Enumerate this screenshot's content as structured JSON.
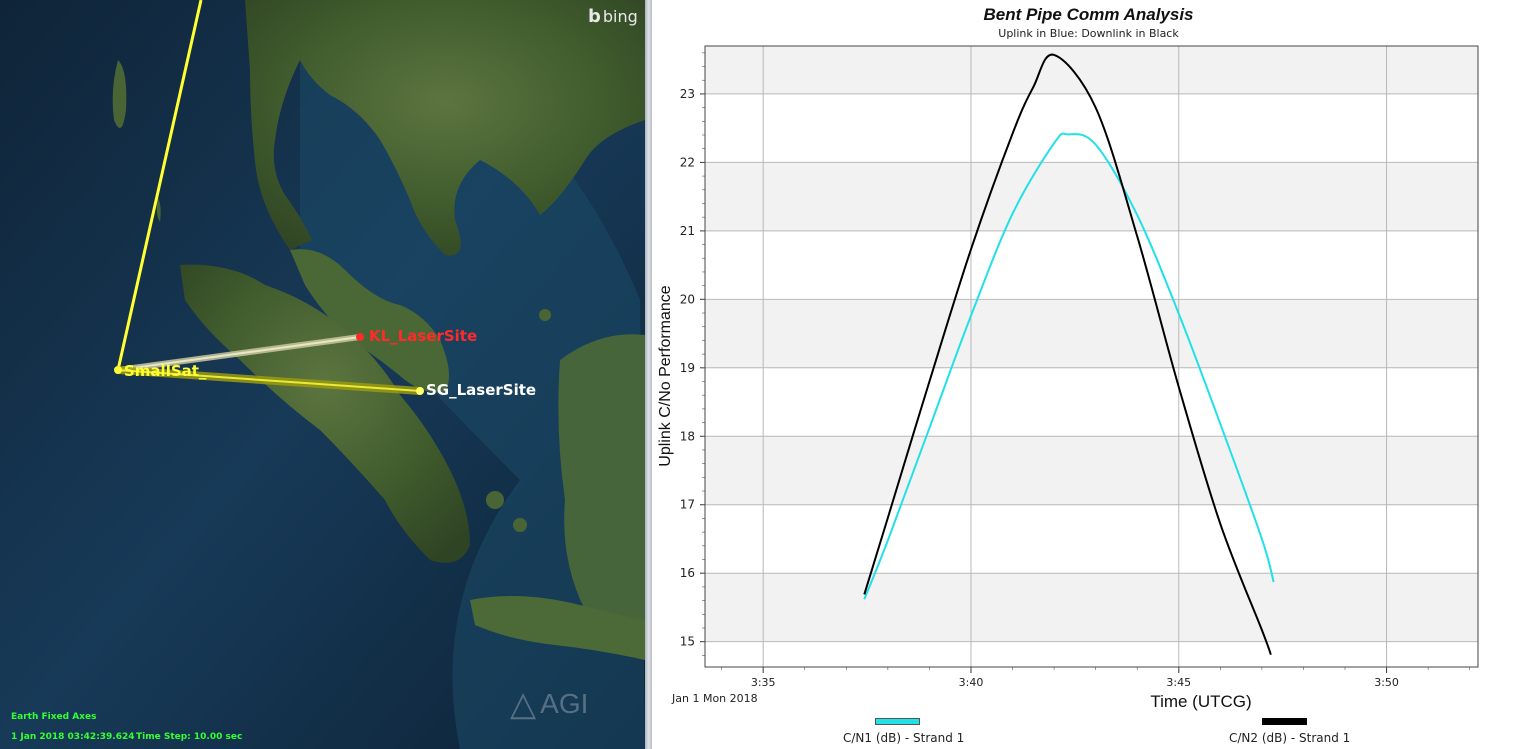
{
  "map": {
    "bing_label": "bing",
    "agi_label": "AGI",
    "status_axes": "Earth Fixed Axes",
    "status_time": "1 Jan 2018 03:42:39.624",
    "status_step": "Time Step: 10.00 sec",
    "sat_label": "SmallSat_",
    "site1_label": "KL_LaserSite",
    "site2_label": "SG_LaserSite",
    "colors": {
      "sat": "#ffff33",
      "kl": "#ff2a2a",
      "sg": "#ffffff",
      "ocean": "#13304a",
      "land": "#3b5a2e"
    }
  },
  "chart_data": {
    "type": "line",
    "title": "Bent Pipe  Comm Analysis",
    "subtitle": "Uplink in Blue: Downlink in Black",
    "xlabel": "Time (UTCG)",
    "ylabel": "Uplink C/No Performance",
    "date_label": "Jan 1 Mon 2018",
    "x_ticks": [
      "3:35",
      "3:40",
      "3:45",
      "3:50"
    ],
    "y_ticks": [
      15,
      16,
      17,
      18,
      19,
      20,
      21,
      22,
      23
    ],
    "xlim": [
      "3:33:36",
      "3:52:12"
    ],
    "ylim": [
      14.63,
      23.7
    ],
    "grid": true,
    "legend_position": "bottom",
    "series": [
      {
        "name": "C/N1 (dB) - Strand 1",
        "color": "#22e0e8",
        "x": [
          "3:37:26",
          "3:38:00",
          "3:39:00",
          "3:40:00",
          "3:41:00",
          "3:42:00",
          "3:42:20",
          "3:43:00",
          "3:44:00",
          "3:45:00",
          "3:46:00",
          "3:47:00",
          "3:47:17"
        ],
        "values": [
          15.62,
          16.48,
          18.12,
          19.76,
          21.25,
          22.28,
          22.41,
          22.26,
          21.23,
          19.79,
          18.18,
          16.5,
          15.87
        ]
      },
      {
        "name": "C/N2 (dB) - Strand 1",
        "color": "#000000",
        "x": [
          "3:37:26",
          "3:38:00",
          "3:39:00",
          "3:40:00",
          "3:41:00",
          "3:41:30",
          "3:42:00",
          "3:43:00",
          "3:44:00",
          "3:45:00",
          "3:46:00",
          "3:47:00",
          "3:47:13"
        ],
        "values": [
          15.69,
          16.81,
          18.8,
          20.73,
          22.42,
          23.1,
          23.57,
          22.8,
          20.92,
          18.72,
          16.72,
          15.17,
          14.81
        ]
      }
    ]
  }
}
